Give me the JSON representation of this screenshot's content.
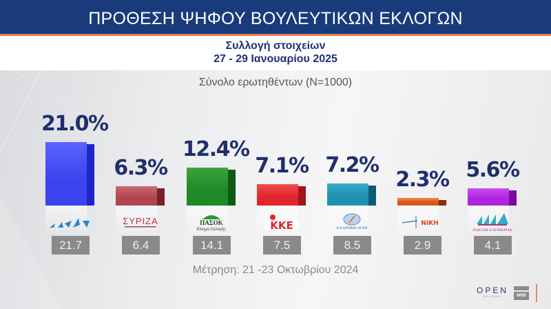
{
  "header": {
    "title": "ΠΡΟΘΕΣΗ ΨΗΦΟΥ ΒΟΥΛΕΥΤΙΚΩΝ ΕΚΛΟΓΩΝ",
    "subtitle_line1": "Συλλογή στοιχείων",
    "subtitle_line2": "27 - 29 Ιανουαρίου 2025"
  },
  "sample_label": "Σύνολο ερωτηθέντων (N=1000)",
  "previous_label": "Μέτρηση: 21 -23 Οκτωβρίου 2024",
  "branding": {
    "open": "OPEN",
    "open_sub": "BEYOND",
    "mrb": "MRB"
  },
  "colors": {
    "header_bg": "#193b7c",
    "header_accent": "#e0784e",
    "value_text": "#1f2e6e",
    "prev_box": "#8a8a8a"
  },
  "parties": [
    {
      "name": "ΝΔ",
      "logo_text": "ΝΔ",
      "value_label": "21.0%",
      "prev_label": "21.7",
      "front": "#3a44f0",
      "side": "#1f26c8",
      "top": "#5a63ff",
      "logo_color": "#2a86c8"
    },
    {
      "name": "ΣΥΡΙΖΑ",
      "logo_text": "ΣΥΡΙΖΑ",
      "value_label": "6.3%",
      "prev_label": "6.4",
      "front": "#b0454f",
      "side": "#7a1f2a",
      "top": "#c66870",
      "logo_color": "#c0303a"
    },
    {
      "name": "ΠΑΣΟΚ",
      "logo_text": "ΠΑΣΟΚ",
      "logo_sub": "Κίνημα Αλλαγής",
      "value_label": "12.4%",
      "prev_label": "14.1",
      "front": "#1d8a25",
      "side": "#0d5a12",
      "top": "#3aa43e",
      "logo_color": "#1a6a20"
    },
    {
      "name": "ΚΚΕ",
      "logo_text": "ΚΚΕ",
      "value_label": "7.1%",
      "prev_label": "7.5",
      "front": "#e0262c",
      "side": "#a0141a",
      "top": "#f04a4e",
      "logo_color": "#e0262c"
    },
    {
      "name": "Ελληνική Λύση",
      "logo_text": "ΕΛΛΗΝΙΚΗ ΛΥΣΗ",
      "value_label": "7.2%",
      "prev_label": "8.5",
      "front": "#1f90b0",
      "side": "#0e5a72",
      "top": "#3aaac8",
      "logo_color": "#2a5aa0"
    },
    {
      "name": "ΝΙΚΗ",
      "logo_text": "ΝΙΚΗ",
      "value_label": "2.3%",
      "prev_label": "2.9",
      "front": "#d9541c",
      "side": "#8a2e0c",
      "top": "#ee7a40",
      "logo_color": "#e04020"
    },
    {
      "name": "Πλεύση Ελευθερίας",
      "logo_text": "ΠΛΕΥΣΗ ΕΛΕΥΘΕΡΙΑΣ",
      "value_label": "5.6%",
      "prev_label": "4.1",
      "front": "#b024e0",
      "side": "#7a0aa0",
      "top": "#c84af0",
      "logo_color": "#9a2a7a"
    }
  ],
  "chart_data": {
    "type": "bar",
    "title": "ΠΡΟΘΕΣΗ ΨΗΦΟΥ ΒΟΥΛΕΥΤΙΚΩΝ ΕΚΛΟΓΩΝ",
    "subtitle": "Συλλογή στοιχείων 27 - 29 Ιανουαρίου 2025 — Σύνολο ερωτηθέντων (N=1000)",
    "categories": [
      "ΝΔ",
      "ΣΥΡΙΖΑ",
      "ΠΑΣΟΚ",
      "ΚΚΕ",
      "Ελληνική Λύση",
      "ΝΙΚΗ",
      "Πλεύση Ελευθερίας"
    ],
    "series": [
      {
        "name": "27-29 Ιανουαρίου 2025",
        "values": [
          21.0,
          6.3,
          12.4,
          7.1,
          7.2,
          2.3,
          5.6
        ]
      },
      {
        "name": "Μέτρηση: 21-23 Οκτωβρίου 2024",
        "values": [
          21.7,
          6.4,
          14.1,
          7.5,
          8.5,
          2.9,
          4.1
        ]
      }
    ],
    "xlabel": "",
    "ylabel": "%",
    "grid": false,
    "legend": "none"
  }
}
